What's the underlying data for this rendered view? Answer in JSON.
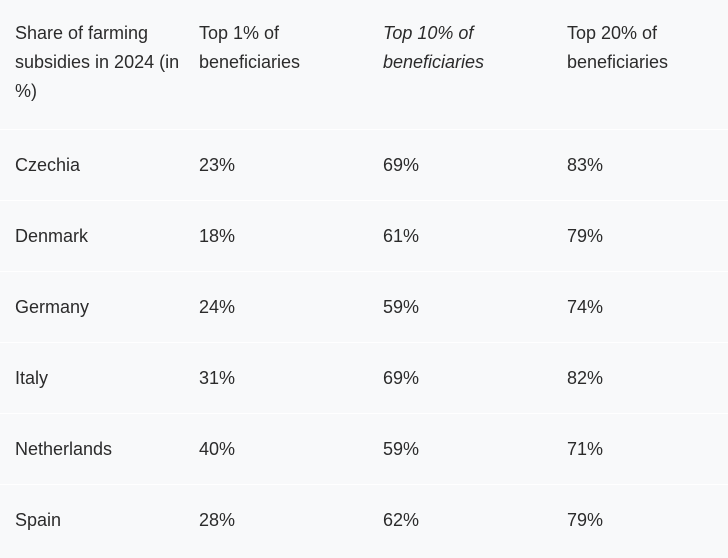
{
  "table": {
    "headers": [
      "Share of farming subsidies in 2024 (in %)",
      "Top 1% of beneficiaries",
      "Top 10% of beneficiaries",
      "Top 20% of beneficiaries"
    ],
    "rows": [
      [
        "Czechia",
        "23%",
        "69%",
        "83%"
      ],
      [
        "Denmark",
        "18%",
        "61%",
        "79%"
      ],
      [
        "Germany",
        "24%",
        "59%",
        "74%"
      ],
      [
        "Italy",
        "31%",
        "69%",
        "82%"
      ],
      [
        "Netherlands",
        "40%",
        "59%",
        "71%"
      ],
      [
        "Spain",
        "28%",
        "62%",
        "79%"
      ]
    ]
  }
}
